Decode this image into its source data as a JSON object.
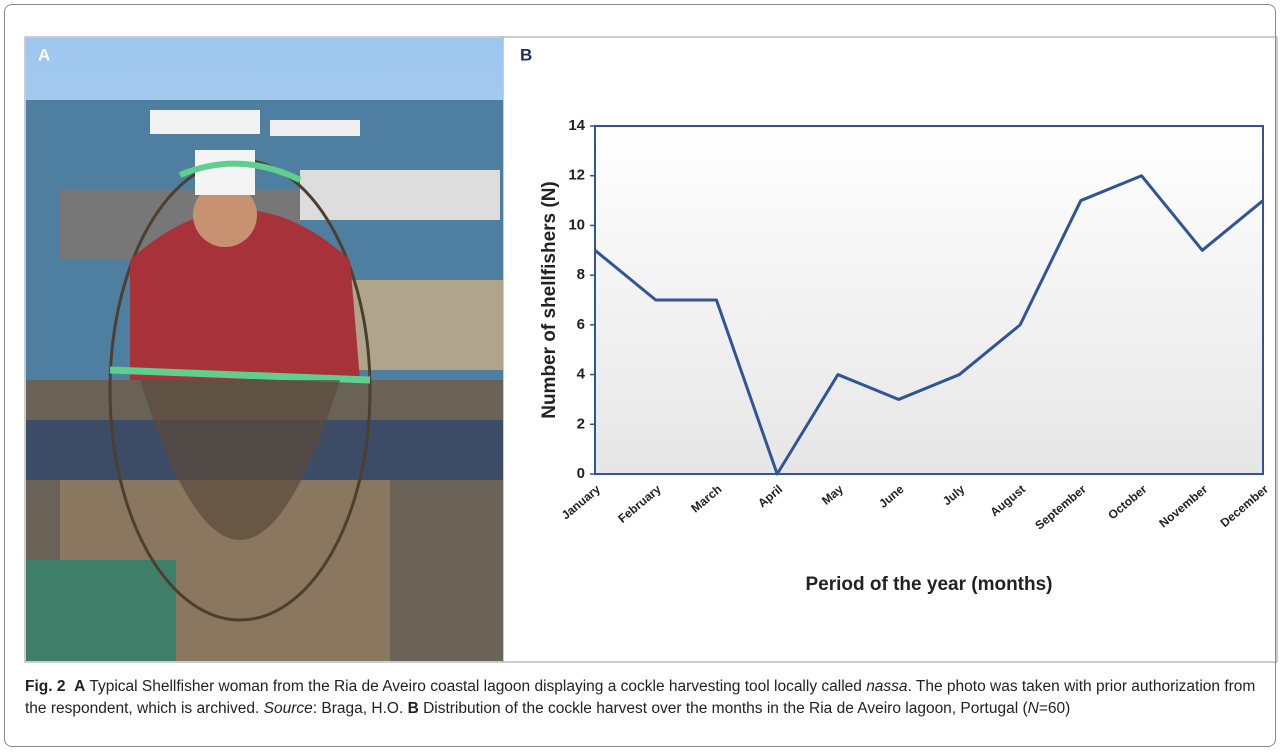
{
  "panels": {
    "a_label": "A",
    "b_label": "B"
  },
  "chart_data": {
    "type": "line",
    "x_label": "Period of the year (months)",
    "y_label": "Number of shellfishers (N)",
    "categories": [
      "January",
      "February",
      "March",
      "April",
      "May",
      "June",
      "July",
      "August",
      "September",
      "October",
      "November",
      "December"
    ],
    "series": [
      {
        "color": "#2f5597",
        "values": [
          9,
          7,
          7,
          0,
          4,
          3,
          4,
          6,
          11,
          12,
          9,
          11
        ]
      }
    ],
    "ylim": [
      0,
      14
    ],
    "yticks": [
      0,
      2,
      4,
      6,
      8,
      10,
      12,
      14
    ]
  },
  "caption": {
    "label": "Fig. 2",
    "a_marker": "A",
    "text1": " Typical Shellfisher woman from the Ria de Aveiro coastal lagoon displaying a cockle harvesting tool locally called ",
    "em1": "nassa",
    "text2": ". The photo was taken with prior authorization from the respondent, which is archived. ",
    "em2": "Source",
    "text3": ": Braga, H.O. ",
    "b_marker": "B",
    "text4": " Distribution of the cockle harvest over the months in the Ria de Aveiro lagoon, Portugal (",
    "em3": "N",
    "text5": "=60)"
  }
}
